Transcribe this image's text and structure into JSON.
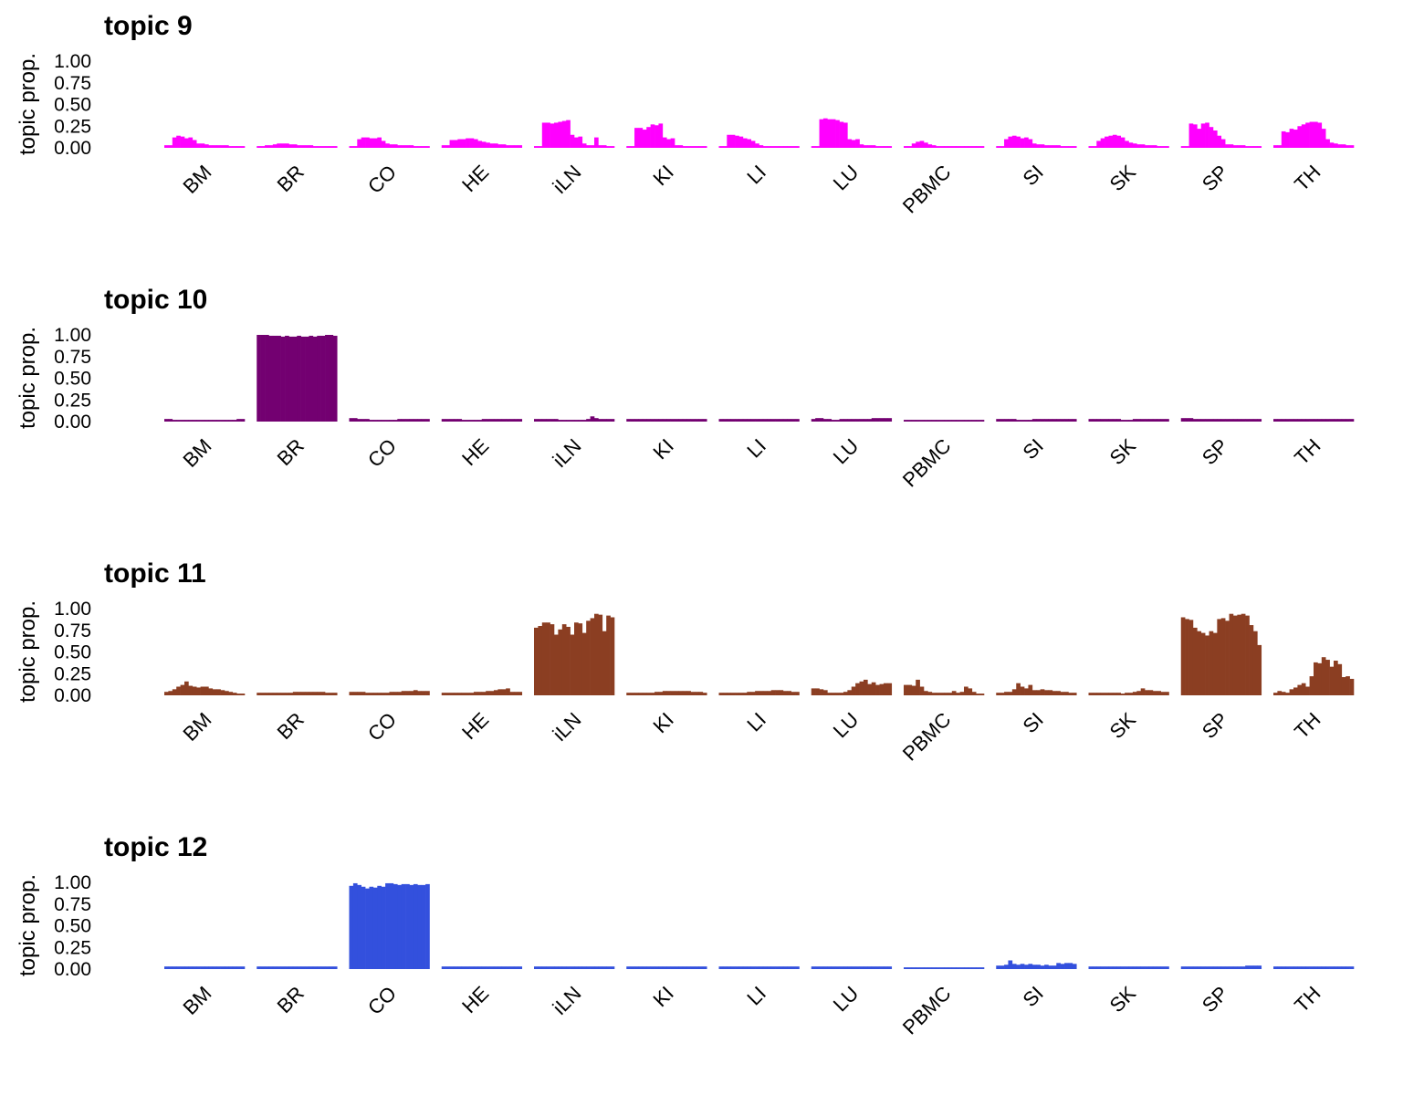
{
  "chart_data": [
    {
      "type": "bar",
      "title": "topic 9",
      "ylabel": "topic prop.",
      "xlabel": "",
      "ylim": [
        0,
        1
      ],
      "yticks": [
        "0.00",
        "0.25",
        "0.50",
        "0.75",
        "1.00"
      ],
      "color": "#ff00ff",
      "categories": [
        "BM",
        "BR",
        "CO",
        "HE",
        "iLN",
        "KI",
        "LI",
        "LU",
        "PBMC",
        "SI",
        "SK",
        "SP",
        "TH"
      ],
      "values": [
        [
          0.03,
          0.03,
          0.12,
          0.14,
          0.13,
          0.11,
          0.12,
          0.09,
          0.05,
          0.05,
          0.04,
          0.03,
          0.03,
          0.03,
          0.03,
          0.03,
          0.02,
          0.02,
          0.02,
          0.02
        ],
        [
          0.02,
          0.02,
          0.03,
          0.03,
          0.04,
          0.05,
          0.05,
          0.05,
          0.04,
          0.04,
          0.03,
          0.03,
          0.03,
          0.03,
          0.02,
          0.02,
          0.02,
          0.02,
          0.02,
          0.02
        ],
        [
          0.02,
          0.02,
          0.1,
          0.12,
          0.12,
          0.11,
          0.11,
          0.12,
          0.08,
          0.05,
          0.04,
          0.04,
          0.03,
          0.03,
          0.03,
          0.03,
          0.02,
          0.02,
          0.02,
          0.02
        ],
        [
          0.03,
          0.03,
          0.09,
          0.09,
          0.1,
          0.1,
          0.11,
          0.11,
          0.1,
          0.08,
          0.07,
          0.06,
          0.05,
          0.05,
          0.04,
          0.04,
          0.03,
          0.03,
          0.03,
          0.03
        ],
        [
          0.02,
          0.02,
          0.29,
          0.29,
          0.28,
          0.29,
          0.3,
          0.31,
          0.32,
          0.15,
          0.12,
          0.13,
          0.05,
          0.03,
          0.03,
          0.12,
          0.03,
          0.03,
          0.02,
          0.02
        ],
        [
          0.02,
          0.02,
          0.23,
          0.23,
          0.21,
          0.24,
          0.27,
          0.26,
          0.28,
          0.12,
          0.1,
          0.11,
          0.03,
          0.03,
          0.02,
          0.02,
          0.02,
          0.02,
          0.02,
          0.02
        ],
        [
          0.02,
          0.02,
          0.15,
          0.15,
          0.14,
          0.13,
          0.11,
          0.1,
          0.08,
          0.05,
          0.03,
          0.02,
          0.02,
          0.02,
          0.02,
          0.02,
          0.02,
          0.02,
          0.02,
          0.02
        ],
        [
          0.02,
          0.02,
          0.33,
          0.34,
          0.33,
          0.33,
          0.32,
          0.3,
          0.29,
          0.1,
          0.09,
          0.1,
          0.04,
          0.03,
          0.03,
          0.03,
          0.02,
          0.02,
          0.02,
          0.02
        ],
        [
          0.02,
          0.02,
          0.05,
          0.07,
          0.08,
          0.06,
          0.04,
          0.03,
          0.02,
          0.02,
          0.02,
          0.02,
          0.02,
          0.02,
          0.02,
          0.02,
          0.02,
          0.02,
          0.02,
          0.02
        ],
        [
          0.02,
          0.02,
          0.1,
          0.13,
          0.14,
          0.13,
          0.11,
          0.12,
          0.1,
          0.05,
          0.04,
          0.04,
          0.03,
          0.03,
          0.03,
          0.03,
          0.02,
          0.02,
          0.02,
          0.02
        ],
        [
          0.02,
          0.02,
          0.08,
          0.11,
          0.13,
          0.14,
          0.15,
          0.14,
          0.12,
          0.08,
          0.06,
          0.05,
          0.04,
          0.04,
          0.03,
          0.03,
          0.03,
          0.02,
          0.02,
          0.02
        ],
        [
          0.02,
          0.02,
          0.28,
          0.27,
          0.22,
          0.28,
          0.29,
          0.24,
          0.2,
          0.14,
          0.1,
          0.04,
          0.04,
          0.03,
          0.03,
          0.03,
          0.02,
          0.02,
          0.02,
          0.02
        ],
        [
          0.03,
          0.03,
          0.19,
          0.18,
          0.22,
          0.21,
          0.25,
          0.27,
          0.29,
          0.3,
          0.3,
          0.29,
          0.22,
          0.1,
          0.06,
          0.05,
          0.04,
          0.04,
          0.03,
          0.03
        ]
      ]
    },
    {
      "type": "bar",
      "title": "topic 10",
      "ylabel": "topic prop.",
      "xlabel": "",
      "ylim": [
        0,
        1
      ],
      "yticks": [
        "0.00",
        "0.25",
        "0.50",
        "0.75",
        "1.00"
      ],
      "color": "#730071",
      "categories": [
        "BM",
        "BR",
        "CO",
        "HE",
        "iLN",
        "KI",
        "LI",
        "LU",
        "PBMC",
        "SI",
        "SK",
        "SP",
        "TH"
      ],
      "values": [
        [
          0.03,
          0.03,
          0.02,
          0.02,
          0.02,
          0.02,
          0.02,
          0.02,
          0.02,
          0.02,
          0.02,
          0.02,
          0.02,
          0.02,
          0.02,
          0.02,
          0.02,
          0.02,
          0.03,
          0.03
        ],
        [
          1.0,
          1.0,
          1.0,
          0.99,
          0.99,
          0.99,
          0.98,
          0.99,
          0.98,
          0.98,
          0.99,
          0.98,
          0.98,
          0.99,
          0.98,
          0.99,
          0.99,
          1.0,
          1.0,
          0.99
        ],
        [
          0.04,
          0.04,
          0.03,
          0.03,
          0.03,
          0.02,
          0.02,
          0.02,
          0.02,
          0.02,
          0.02,
          0.02,
          0.03,
          0.03,
          0.03,
          0.03,
          0.03,
          0.03,
          0.03,
          0.03
        ],
        [
          0.03,
          0.03,
          0.03,
          0.03,
          0.03,
          0.02,
          0.02,
          0.02,
          0.02,
          0.02,
          0.03,
          0.03,
          0.03,
          0.03,
          0.03,
          0.03,
          0.03,
          0.03,
          0.03,
          0.03
        ],
        [
          0.03,
          0.03,
          0.03,
          0.03,
          0.03,
          0.03,
          0.02,
          0.02,
          0.02,
          0.02,
          0.02,
          0.02,
          0.02,
          0.03,
          0.06,
          0.04,
          0.03,
          0.03,
          0.03,
          0.03
        ],
        [
          0.03,
          0.03,
          0.03,
          0.03,
          0.03,
          0.03,
          0.03,
          0.03,
          0.03,
          0.03,
          0.03,
          0.03,
          0.03,
          0.03,
          0.03,
          0.03,
          0.03,
          0.03,
          0.03,
          0.03
        ],
        [
          0.03,
          0.03,
          0.03,
          0.03,
          0.03,
          0.03,
          0.03,
          0.03,
          0.03,
          0.03,
          0.03,
          0.03,
          0.03,
          0.03,
          0.03,
          0.03,
          0.03,
          0.03,
          0.03,
          0.03
        ],
        [
          0.03,
          0.04,
          0.04,
          0.03,
          0.03,
          0.02,
          0.02,
          0.03,
          0.03,
          0.03,
          0.03,
          0.03,
          0.03,
          0.03,
          0.03,
          0.04,
          0.04,
          0.04,
          0.04,
          0.04
        ],
        [
          0.02,
          0.02,
          0.02,
          0.02,
          0.02,
          0.02,
          0.02,
          0.02,
          0.02,
          0.02,
          0.02,
          0.02,
          0.02,
          0.02,
          0.02,
          0.02,
          0.02,
          0.02,
          0.02,
          0.02
        ],
        [
          0.03,
          0.03,
          0.03,
          0.03,
          0.03,
          0.02,
          0.02,
          0.02,
          0.02,
          0.03,
          0.03,
          0.03,
          0.03,
          0.03,
          0.03,
          0.03,
          0.03,
          0.03,
          0.03,
          0.03
        ],
        [
          0.03,
          0.03,
          0.03,
          0.03,
          0.03,
          0.03,
          0.03,
          0.03,
          0.02,
          0.02,
          0.02,
          0.03,
          0.03,
          0.03,
          0.03,
          0.03,
          0.03,
          0.03,
          0.03,
          0.03
        ],
        [
          0.04,
          0.04,
          0.04,
          0.03,
          0.03,
          0.03,
          0.03,
          0.03,
          0.03,
          0.03,
          0.03,
          0.03,
          0.03,
          0.03,
          0.03,
          0.03,
          0.03,
          0.03,
          0.03,
          0.03
        ],
        [
          0.03,
          0.03,
          0.03,
          0.03,
          0.03,
          0.03,
          0.03,
          0.03,
          0.03,
          0.03,
          0.03,
          0.03,
          0.03,
          0.03,
          0.03,
          0.03,
          0.03,
          0.03,
          0.03,
          0.03
        ]
      ]
    },
    {
      "type": "bar",
      "title": "topic 11",
      "ylabel": "topic prop.",
      "xlabel": "",
      "ylim": [
        0,
        1
      ],
      "yticks": [
        "0.00",
        "0.25",
        "0.50",
        "0.75",
        "1.00"
      ],
      "color": "#8b3e22",
      "categories": [
        "BM",
        "BR",
        "CO",
        "HE",
        "iLN",
        "KI",
        "LI",
        "LU",
        "PBMC",
        "SI",
        "SK",
        "SP",
        "TH"
      ],
      "values": [
        [
          0.04,
          0.05,
          0.07,
          0.1,
          0.12,
          0.16,
          0.11,
          0.1,
          0.09,
          0.1,
          0.1,
          0.08,
          0.07,
          0.07,
          0.06,
          0.05,
          0.04,
          0.03,
          0.02,
          0.02
        ],
        [
          0.03,
          0.03,
          0.03,
          0.03,
          0.03,
          0.03,
          0.03,
          0.03,
          0.03,
          0.04,
          0.04,
          0.04,
          0.04,
          0.04,
          0.04,
          0.04,
          0.04,
          0.03,
          0.03,
          0.03
        ],
        [
          0.04,
          0.04,
          0.04,
          0.04,
          0.03,
          0.03,
          0.03,
          0.03,
          0.03,
          0.03,
          0.04,
          0.04,
          0.04,
          0.05,
          0.05,
          0.05,
          0.06,
          0.05,
          0.05,
          0.05
        ],
        [
          0.03,
          0.03,
          0.03,
          0.03,
          0.03,
          0.03,
          0.03,
          0.03,
          0.04,
          0.04,
          0.04,
          0.05,
          0.05,
          0.06,
          0.07,
          0.07,
          0.08,
          0.04,
          0.04,
          0.04
        ],
        [
          0.78,
          0.8,
          0.84,
          0.84,
          0.82,
          0.7,
          0.76,
          0.82,
          0.79,
          0.7,
          0.84,
          0.83,
          0.72,
          0.86,
          0.89,
          0.94,
          0.93,
          0.74,
          0.92,
          0.9
        ],
        [
          0.03,
          0.03,
          0.03,
          0.03,
          0.03,
          0.03,
          0.03,
          0.04,
          0.04,
          0.05,
          0.05,
          0.05,
          0.05,
          0.05,
          0.05,
          0.05,
          0.04,
          0.04,
          0.04,
          0.03
        ],
        [
          0.03,
          0.03,
          0.03,
          0.03,
          0.03,
          0.03,
          0.03,
          0.04,
          0.04,
          0.05,
          0.05,
          0.05,
          0.05,
          0.06,
          0.06,
          0.06,
          0.05,
          0.05,
          0.04,
          0.04
        ],
        [
          0.08,
          0.08,
          0.07,
          0.06,
          0.03,
          0.03,
          0.03,
          0.03,
          0.04,
          0.06,
          0.1,
          0.14,
          0.16,
          0.18,
          0.13,
          0.15,
          0.12,
          0.13,
          0.14,
          0.14
        ],
        [
          0.12,
          0.12,
          0.11,
          0.18,
          0.1,
          0.05,
          0.04,
          0.03,
          0.03,
          0.03,
          0.03,
          0.03,
          0.05,
          0.03,
          0.04,
          0.1,
          0.08,
          0.04,
          0.02,
          0.02
        ],
        [
          0.03,
          0.03,
          0.04,
          0.04,
          0.07,
          0.14,
          0.1,
          0.08,
          0.12,
          0.06,
          0.06,
          0.07,
          0.06,
          0.06,
          0.05,
          0.05,
          0.04,
          0.04,
          0.03,
          0.03
        ],
        [
          0.03,
          0.03,
          0.03,
          0.03,
          0.03,
          0.03,
          0.03,
          0.03,
          0.02,
          0.03,
          0.03,
          0.04,
          0.05,
          0.08,
          0.06,
          0.06,
          0.05,
          0.05,
          0.04,
          0.04
        ],
        [
          0.9,
          0.88,
          0.87,
          0.78,
          0.74,
          0.72,
          0.69,
          0.74,
          0.72,
          0.88,
          0.89,
          0.86,
          0.94,
          0.92,
          0.93,
          0.94,
          0.92,
          0.81,
          0.74,
          0.58
        ],
        [
          0.03,
          0.05,
          0.04,
          0.03,
          0.07,
          0.09,
          0.12,
          0.14,
          0.1,
          0.22,
          0.38,
          0.37,
          0.44,
          0.41,
          0.33,
          0.4,
          0.36,
          0.21,
          0.22,
          0.19
        ]
      ]
    },
    {
      "type": "bar",
      "title": "topic 12",
      "ylabel": "topic prop.",
      "xlabel": "",
      "ylim": [
        0,
        1
      ],
      "yticks": [
        "0.00",
        "0.25",
        "0.50",
        "0.75",
        "1.00"
      ],
      "color": "#3350dd",
      "categories": [
        "BM",
        "BR",
        "CO",
        "HE",
        "iLN",
        "KI",
        "LI",
        "LU",
        "PBMC",
        "SI",
        "SK",
        "SP",
        "TH"
      ],
      "values": [
        [
          0.03,
          0.03,
          0.03,
          0.03,
          0.03,
          0.03,
          0.03,
          0.03,
          0.03,
          0.03,
          0.03,
          0.03,
          0.03,
          0.03,
          0.03,
          0.03,
          0.03,
          0.03,
          0.03,
          0.03
        ],
        [
          0.03,
          0.03,
          0.03,
          0.03,
          0.03,
          0.03,
          0.03,
          0.03,
          0.03,
          0.03,
          0.03,
          0.03,
          0.03,
          0.03,
          0.03,
          0.03,
          0.03,
          0.03,
          0.03,
          0.03
        ],
        [
          0.96,
          0.99,
          0.97,
          0.95,
          0.93,
          0.95,
          0.94,
          0.96,
          0.95,
          0.99,
          0.99,
          0.98,
          0.97,
          0.98,
          0.98,
          0.97,
          0.98,
          0.97,
          0.97,
          0.98
        ],
        [
          0.03,
          0.03,
          0.03,
          0.03,
          0.03,
          0.03,
          0.03,
          0.03,
          0.03,
          0.03,
          0.03,
          0.03,
          0.03,
          0.03,
          0.03,
          0.03,
          0.03,
          0.03,
          0.03,
          0.03
        ],
        [
          0.03,
          0.03,
          0.03,
          0.03,
          0.03,
          0.03,
          0.03,
          0.03,
          0.03,
          0.03,
          0.03,
          0.03,
          0.03,
          0.03,
          0.03,
          0.03,
          0.03,
          0.03,
          0.03,
          0.03
        ],
        [
          0.03,
          0.03,
          0.03,
          0.03,
          0.03,
          0.03,
          0.03,
          0.03,
          0.03,
          0.03,
          0.03,
          0.03,
          0.03,
          0.03,
          0.03,
          0.03,
          0.03,
          0.03,
          0.03,
          0.03
        ],
        [
          0.03,
          0.03,
          0.03,
          0.03,
          0.03,
          0.03,
          0.03,
          0.03,
          0.03,
          0.03,
          0.03,
          0.03,
          0.03,
          0.03,
          0.03,
          0.03,
          0.03,
          0.03,
          0.03,
          0.03
        ],
        [
          0.03,
          0.03,
          0.03,
          0.03,
          0.03,
          0.03,
          0.03,
          0.03,
          0.03,
          0.03,
          0.03,
          0.03,
          0.03,
          0.03,
          0.03,
          0.03,
          0.03,
          0.03,
          0.03,
          0.03
        ],
        [
          0.02,
          0.02,
          0.02,
          0.02,
          0.02,
          0.02,
          0.02,
          0.02,
          0.02,
          0.02,
          0.02,
          0.02,
          0.02,
          0.02,
          0.02,
          0.02,
          0.02,
          0.02,
          0.02,
          0.02
        ],
        [
          0.04,
          0.04,
          0.05,
          0.1,
          0.06,
          0.05,
          0.06,
          0.05,
          0.06,
          0.05,
          0.05,
          0.04,
          0.05,
          0.04,
          0.04,
          0.07,
          0.06,
          0.07,
          0.07,
          0.06
        ],
        [
          0.03,
          0.03,
          0.03,
          0.03,
          0.03,
          0.03,
          0.03,
          0.03,
          0.03,
          0.03,
          0.03,
          0.03,
          0.03,
          0.03,
          0.03,
          0.03,
          0.03,
          0.03,
          0.03,
          0.03
        ],
        [
          0.03,
          0.03,
          0.03,
          0.03,
          0.03,
          0.03,
          0.03,
          0.03,
          0.03,
          0.03,
          0.03,
          0.03,
          0.03,
          0.03,
          0.03,
          0.03,
          0.04,
          0.04,
          0.04,
          0.04
        ],
        [
          0.03,
          0.03,
          0.03,
          0.03,
          0.03,
          0.03,
          0.03,
          0.03,
          0.03,
          0.03,
          0.03,
          0.03,
          0.03,
          0.03,
          0.03,
          0.03,
          0.03,
          0.03,
          0.03,
          0.03
        ]
      ]
    }
  ]
}
